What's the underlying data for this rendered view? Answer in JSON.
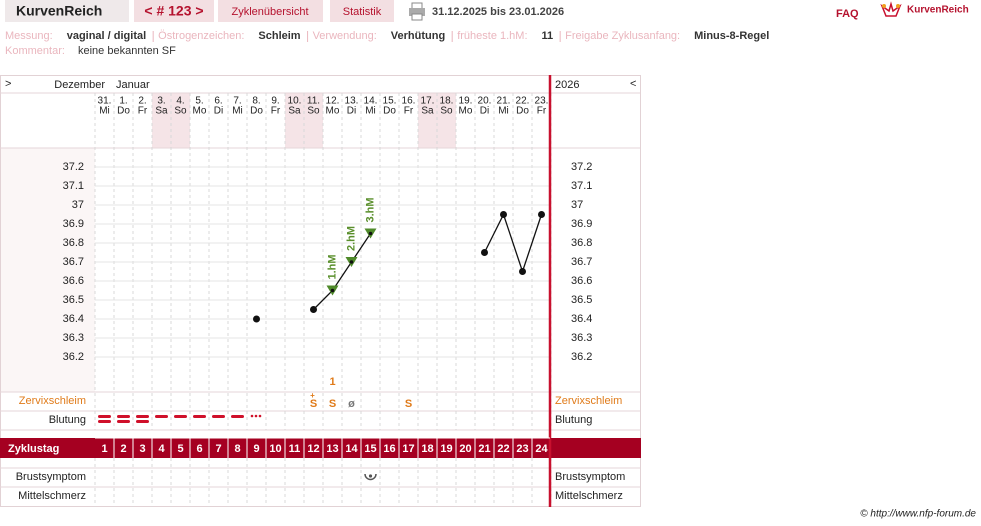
{
  "header": {
    "brand": "KurvenReich",
    "cycle_nav": "< # 123 >",
    "tabs": [
      "Zyklenübersicht",
      "Statistik"
    ],
    "range": "31.12.2025 bis 23.01.2026",
    "faq": "FAQ",
    "logo": "KurvenReich"
  },
  "info": {
    "items": [
      {
        "label": "Messung:",
        "value": "vaginal / digital"
      },
      {
        "label": "Östrogenzeichen:",
        "value": "Schleim"
      },
      {
        "label": "Verwendung:",
        "value": "Verhütung"
      },
      {
        "label": "früheste 1.hM:",
        "value": "11"
      },
      {
        "label": "Freigabe Zyklusanfang:",
        "value": "Minus-8-Regel"
      }
    ],
    "comment_label": "Kommentar:",
    "comment": "keine bekannten SF"
  },
  "chart": {
    "prev": ">",
    "next": "<",
    "months": [
      "Dezember",
      "Januar"
    ],
    "year": "2026",
    "dates": [
      "31.",
      "1.",
      "2.",
      "3.",
      "4.",
      "5.",
      "6.",
      "7.",
      "8.",
      "9.",
      "10.",
      "11.",
      "12.",
      "13.",
      "14.",
      "15.",
      "16.",
      "17.",
      "18.",
      "19.",
      "20.",
      "21.",
      "22.",
      "23."
    ],
    "weekdays": [
      "Mi",
      "Do",
      "Fr",
      "Sa",
      "So",
      "Mo",
      "Di",
      "Mi",
      "Do",
      "Fr",
      "Sa",
      "So",
      "Mo",
      "Di",
      "Mi",
      "Do",
      "Fr",
      "Sa",
      "So",
      "Mo",
      "Di",
      "Mi",
      "Do",
      "Fr"
    ],
    "ylim": [
      36.0,
      37.3
    ],
    "yticks": [
      36.2,
      36.3,
      36.4,
      36.5,
      36.6,
      36.7,
      36.8,
      36.9,
      37,
      37.1,
      37.2
    ],
    "temps": [
      null,
      null,
      null,
      null,
      null,
      null,
      null,
      null,
      36.4,
      null,
      null,
      36.45,
      36.55,
      36.7,
      36.85,
      null,
      null,
      null,
      null,
      null,
      36.75,
      36.95,
      36.65,
      36.95
    ],
    "hm_labels": [
      null,
      null,
      null,
      null,
      null,
      null,
      null,
      null,
      null,
      null,
      null,
      null,
      "1.hM",
      "2.hM",
      "3.hM",
      null,
      null,
      null,
      null,
      null,
      null,
      null,
      null,
      null
    ],
    "cervix_top": [
      null,
      null,
      null,
      null,
      null,
      null,
      null,
      null,
      null,
      null,
      null,
      "+",
      "1",
      null,
      null,
      null,
      null,
      null,
      null,
      null,
      null,
      null,
      null,
      null
    ],
    "cervix": [
      null,
      null,
      null,
      null,
      null,
      null,
      null,
      null,
      null,
      null,
      null,
      "S",
      "S",
      "ø",
      null,
      null,
      "S",
      null,
      null,
      null,
      null,
      null,
      null,
      null
    ],
    "rows": {
      "cervix": "Zervixschleim",
      "bleeding": "Blutung",
      "cycle_day": "Zyklustag",
      "breast": "Brustsymptom",
      "pain": "Mittelschmerz"
    },
    "cycle_days": [
      "1",
      "2",
      "3",
      "4",
      "5",
      "6",
      "7",
      "8",
      "9",
      "10",
      "11",
      "12",
      "13",
      "14",
      "15",
      "16",
      "17",
      "18",
      "19",
      "20",
      "21",
      "22",
      "23",
      "24"
    ]
  },
  "footer": "© http://www.nfp-forum.de"
}
